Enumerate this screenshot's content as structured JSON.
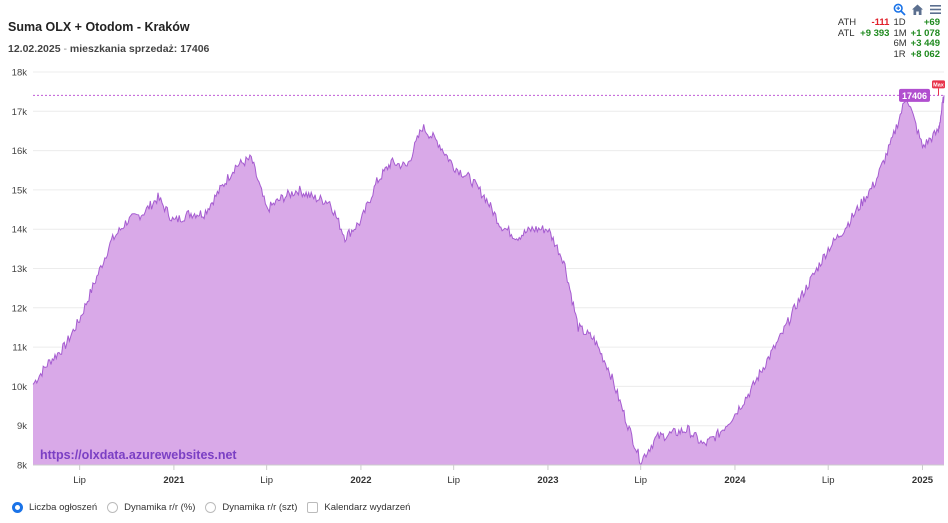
{
  "header": {
    "title": "Suma OLX + Otodom - Kraków",
    "date": "12.02.2025",
    "separator": " - ",
    "metric": "mieszkania sprzedaż: 17406"
  },
  "toolbar": {
    "zoom_icon": "magnifier-icon",
    "home_icon": "home-icon",
    "menu_icon": "hamburger-menu-icon"
  },
  "stats": {
    "rows": [
      {
        "l1": "ATH",
        "v1": "-111",
        "l2": "1D",
        "v2": "+69"
      },
      {
        "l1": "ATL",
        "v1": "+9 393",
        "l2": "1M",
        "v2": "+1 078"
      },
      {
        "l1": "",
        "v1": "",
        "l2": "6M",
        "v2": "+3 449"
      },
      {
        "l1": "",
        "v1": "",
        "l2": "1R",
        "v2": "+8 062"
      }
    ],
    "colors": {
      "negative": "#e0202a",
      "positive": "#1f8a1f"
    }
  },
  "watermark": "https://olxdata.azurewebsites.net",
  "legend": {
    "items": [
      {
        "label": "Liczba ogłoszeń",
        "kind": "radio",
        "selected": true
      },
      {
        "label": "Dynamika r/r (%)",
        "kind": "radio",
        "selected": false
      },
      {
        "label": "Dynamika r/r (szt)",
        "kind": "radio",
        "selected": false
      },
      {
        "label": "Kalendarz wydarzeń",
        "kind": "checkbox",
        "selected": false
      }
    ]
  },
  "chart_data": {
    "type": "area",
    "title": "Suma OLX + Otodom - Kraków",
    "xlabel": "",
    "ylabel": "",
    "fill_color": "#d9a9e8",
    "line_color": "#a55cd0",
    "ylim": [
      8000,
      18000
    ],
    "xlim": [
      "2020-04-01",
      "2025-02-12"
    ],
    "y_ticks": [
      "8k",
      "9k",
      "10k",
      "11k",
      "12k",
      "13k",
      "14k",
      "15k",
      "16k",
      "17k",
      "18k"
    ],
    "x_ticks": [
      {
        "label": "Lip",
        "date": "2020-07-01",
        "bold": false
      },
      {
        "label": "2021",
        "date": "2021-01-01",
        "bold": true
      },
      {
        "label": "Lip",
        "date": "2021-07-01",
        "bold": false
      },
      {
        "label": "2022",
        "date": "2022-01-01",
        "bold": true
      },
      {
        "label": "Lip",
        "date": "2022-07-01",
        "bold": false
      },
      {
        "label": "2023",
        "date": "2023-01-01",
        "bold": true
      },
      {
        "label": "Lip",
        "date": "2023-07-01",
        "bold": false
      },
      {
        "label": "2024",
        "date": "2024-01-01",
        "bold": true
      },
      {
        "label": "Lip",
        "date": "2024-07-01",
        "bold": false
      },
      {
        "label": "2025",
        "date": "2025-01-01",
        "bold": true
      }
    ],
    "last_value": 17406,
    "last_value_label": "17406",
    "max_label": "Max",
    "series": [
      {
        "x": [
          "2020-04-01",
          "2020-05-01",
          "2020-06-01",
          "2020-07-01",
          "2020-08-01",
          "2020-09-01",
          "2020-10-01",
          "2020-11-01",
          "2020-12-01",
          "2021-01-01",
          "2021-02-01",
          "2021-03-01",
          "2021-04-01",
          "2021-05-01",
          "2021-06-01",
          "2021-07-01",
          "2021-08-01",
          "2021-09-01",
          "2021-10-01",
          "2021-11-01",
          "2021-12-01",
          "2022-01-01",
          "2022-02-01",
          "2022-03-01",
          "2022-04-01",
          "2022-05-01",
          "2022-06-01",
          "2022-07-01",
          "2022-08-01",
          "2022-09-01",
          "2022-10-01",
          "2022-11-01",
          "2022-12-01",
          "2023-01-01",
          "2023-02-01",
          "2023-03-01",
          "2023-04-01",
          "2023-05-01",
          "2023-06-01",
          "2023-07-01",
          "2023-08-01",
          "2023-09-01",
          "2023-10-01",
          "2023-11-01",
          "2023-12-01",
          "2024-01-01",
          "2024-02-01",
          "2024-03-01",
          "2024-04-01",
          "2024-05-01",
          "2024-06-01",
          "2024-07-01",
          "2024-08-01",
          "2024-09-01",
          "2024-10-01",
          "2024-11-01",
          "2024-12-01",
          "2025-01-01",
          "2025-02-01",
          "2025-02-12"
        ],
        "y": [
          10050,
          10600,
          11000,
          11700,
          12700,
          13700,
          14200,
          14400,
          14800,
          14200,
          14400,
          14400,
          15000,
          15600,
          15800,
          14500,
          14800,
          15000,
          14800,
          14700,
          13800,
          14200,
          15200,
          15700,
          15600,
          16600,
          16200,
          15600,
          15300,
          14800,
          14100,
          13800,
          14000,
          14000,
          13200,
          11500,
          11200,
          10400,
          9200,
          8100,
          8700,
          8800,
          8900,
          8500,
          8800,
          9300,
          9900,
          10600,
          11300,
          12100,
          12800,
          13500,
          14000,
          14600,
          15200,
          16200,
          17400,
          16100,
          16500,
          17406
        ]
      }
    ]
  }
}
